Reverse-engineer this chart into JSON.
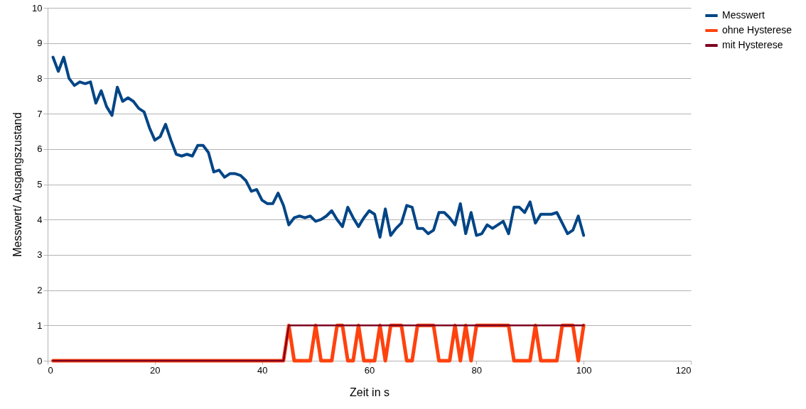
{
  "chart_data": {
    "type": "line",
    "xlabel": "Zeit in s",
    "ylabel": "Messwert/ Ausgangszustand",
    "x": [
      1,
      2,
      3,
      4,
      5,
      6,
      7,
      8,
      9,
      10,
      11,
      12,
      13,
      14,
      15,
      16,
      17,
      18,
      19,
      20,
      21,
      22,
      23,
      24,
      25,
      26,
      27,
      28,
      29,
      30,
      31,
      32,
      33,
      34,
      35,
      36,
      37,
      38,
      39,
      40,
      41,
      42,
      43,
      44,
      45,
      46,
      47,
      48,
      49,
      50,
      51,
      52,
      53,
      54,
      55,
      56,
      57,
      58,
      59,
      60,
      61,
      62,
      63,
      64,
      65,
      66,
      67,
      68,
      69,
      70,
      71,
      72,
      73,
      74,
      75,
      76,
      77,
      78,
      79,
      80,
      81,
      82,
      83,
      84,
      85,
      86,
      87,
      88,
      89,
      90,
      91,
      92,
      93,
      94,
      95,
      96,
      97,
      98,
      99,
      100
    ],
    "series": [
      {
        "name": "Messwert",
        "color": "#004586",
        "values": [
          8.6,
          8.2,
          8.6,
          8.0,
          7.8,
          7.9,
          7.85,
          7.9,
          7.3,
          7.65,
          7.2,
          6.95,
          7.75,
          7.35,
          7.45,
          7.35,
          7.15,
          7.05,
          6.6,
          6.25,
          6.35,
          6.7,
          6.25,
          5.85,
          5.8,
          5.85,
          5.8,
          6.1,
          6.1,
          5.9,
          5.35,
          5.4,
          5.2,
          5.3,
          5.3,
          5.25,
          5.1,
          4.8,
          4.85,
          4.55,
          4.45,
          4.45,
          4.75,
          4.4,
          3.85,
          4.05,
          4.1,
          4.05,
          4.1,
          3.95,
          4.0,
          4.1,
          4.25,
          4.0,
          3.8,
          4.35,
          4.05,
          3.8,
          4.05,
          4.25,
          4.15,
          3.5,
          4.3,
          3.55,
          3.75,
          3.9,
          4.4,
          4.35,
          3.75,
          3.75,
          3.6,
          3.7,
          4.2,
          4.2,
          4.05,
          3.85,
          4.45,
          3.6,
          4.2,
          3.55,
          3.6,
          3.85,
          3.75,
          3.85,
          3.95,
          3.6,
          4.35,
          4.35,
          4.2,
          4.5,
          3.9,
          4.15,
          4.15,
          4.15,
          4.2,
          3.9,
          3.6,
          3.7,
          4.1,
          3.55
        ]
      },
      {
        "name": "ohne Hysterese",
        "color": "#ff420e",
        "values": [
          0,
          0,
          0,
          0,
          0,
          0,
          0,
          0,
          0,
          0,
          0,
          0,
          0,
          0,
          0,
          0,
          0,
          0,
          0,
          0,
          0,
          0,
          0,
          0,
          0,
          0,
          0,
          0,
          0,
          0,
          0,
          0,
          0,
          0,
          0,
          0,
          0,
          0,
          0,
          0,
          0,
          0,
          0,
          0,
          1,
          0,
          0,
          0,
          0,
          1,
          0,
          0,
          0,
          1,
          1,
          0,
          0,
          1,
          0,
          0,
          0,
          1,
          0,
          1,
          1,
          1,
          0,
          0,
          1,
          1,
          1,
          1,
          0,
          0,
          0,
          1,
          0,
          1,
          0,
          1,
          1,
          1,
          1,
          1,
          1,
          1,
          0,
          0,
          0,
          0,
          1,
          0,
          0,
          0,
          0,
          1,
          1,
          1,
          0,
          1
        ]
      },
      {
        "name": "mit Hysterese",
        "color": "#7e0021",
        "values": [
          0,
          0,
          0,
          0,
          0,
          0,
          0,
          0,
          0,
          0,
          0,
          0,
          0,
          0,
          0,
          0,
          0,
          0,
          0,
          0,
          0,
          0,
          0,
          0,
          0,
          0,
          0,
          0,
          0,
          0,
          0,
          0,
          0,
          0,
          0,
          0,
          0,
          0,
          0,
          0,
          0,
          0,
          0,
          0,
          1,
          1,
          1,
          1,
          1,
          1,
          1,
          1,
          1,
          1,
          1,
          1,
          1,
          1,
          1,
          1,
          1,
          1,
          1,
          1,
          1,
          1,
          1,
          1,
          1,
          1,
          1,
          1,
          1,
          1,
          1,
          1,
          1,
          1,
          1,
          1,
          1,
          1,
          1,
          1,
          1,
          1,
          1,
          1,
          1,
          1,
          1,
          1,
          1,
          1,
          1,
          1,
          1,
          1,
          1,
          1
        ]
      }
    ],
    "xlim": [
      0,
      120
    ],
    "xticks": [
      0,
      20,
      40,
      60,
      80,
      100,
      120
    ],
    "ylim": [
      0,
      10
    ],
    "yticks": [
      0,
      1,
      2,
      3,
      4,
      5,
      6,
      7,
      8,
      9,
      10
    ],
    "grid": "y",
    "legend": "right",
    "marker": "none",
    "line_style": "solid"
  }
}
